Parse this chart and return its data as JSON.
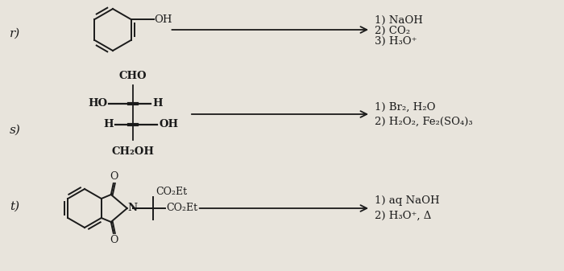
{
  "bg_color": "#e8e4dc",
  "label_r": "r)",
  "label_s": "s)",
  "label_t": "t)",
  "arrow_color": "#1a1a1a",
  "text_color": "#1a1a1a",
  "reaction_r": {
    "conditions": [
      "1) NaOH",
      "2) CO₂",
      "3) H₃O⁺"
    ]
  },
  "reaction_s": {
    "conditions": [
      "1) Br₂, H₂O",
      "2) H₂O₂, Fe₂(SO₄)₃"
    ]
  },
  "reaction_t": {
    "conditions": [
      "1) aq NaOH",
      "2) H₃O⁺, Δ"
    ]
  }
}
